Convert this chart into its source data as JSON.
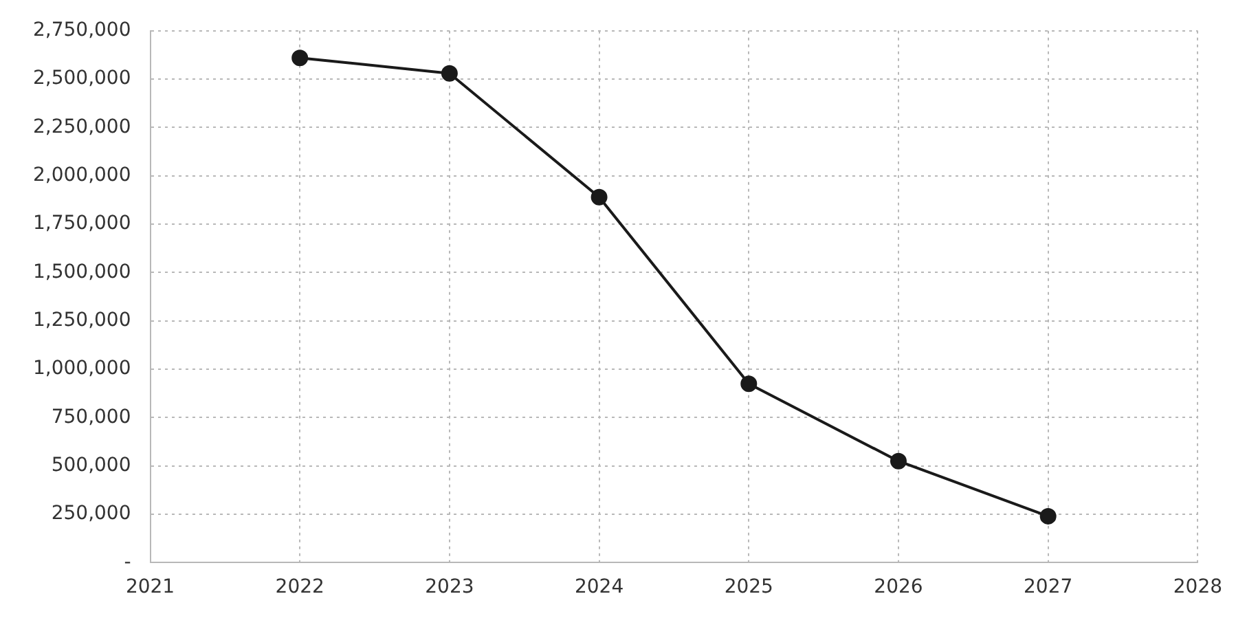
{
  "chart_data": {
    "type": "line",
    "x": [
      2022,
      2023,
      2024,
      2025,
      2026,
      2027
    ],
    "series": [
      {
        "color": "#1a1a1a",
        "values": [
          2610000,
          2530000,
          1890000,
          925000,
          525000,
          240000
        ]
      }
    ],
    "xlim": [
      2021,
      2028
    ],
    "xticks": [
      2021,
      2022,
      2023,
      2024,
      2025,
      2026,
      2027,
      2028
    ],
    "ylim": [
      0,
      2750000
    ],
    "yticks": [
      {
        "value": 0,
        "label": "-"
      },
      {
        "value": 250000,
        "label": "250,000"
      },
      {
        "value": 500000,
        "label": "500,000"
      },
      {
        "value": 750000,
        "label": "750,000"
      },
      {
        "value": 1000000,
        "label": "1,000,000"
      },
      {
        "value": 1250000,
        "label": "1,250,000"
      },
      {
        "value": 1500000,
        "label": "1,500,000"
      },
      {
        "value": 1750000,
        "label": "1,750,000"
      },
      {
        "value": 2000000,
        "label": "2,000,000"
      },
      {
        "value": 2250000,
        "label": "2,250,000"
      },
      {
        "value": 2500000,
        "label": "2,500,000"
      },
      {
        "value": 2750000,
        "label": "2,750,000"
      }
    ],
    "grid": true,
    "marker": "circle",
    "line_style": "solid",
    "legend": false
  }
}
